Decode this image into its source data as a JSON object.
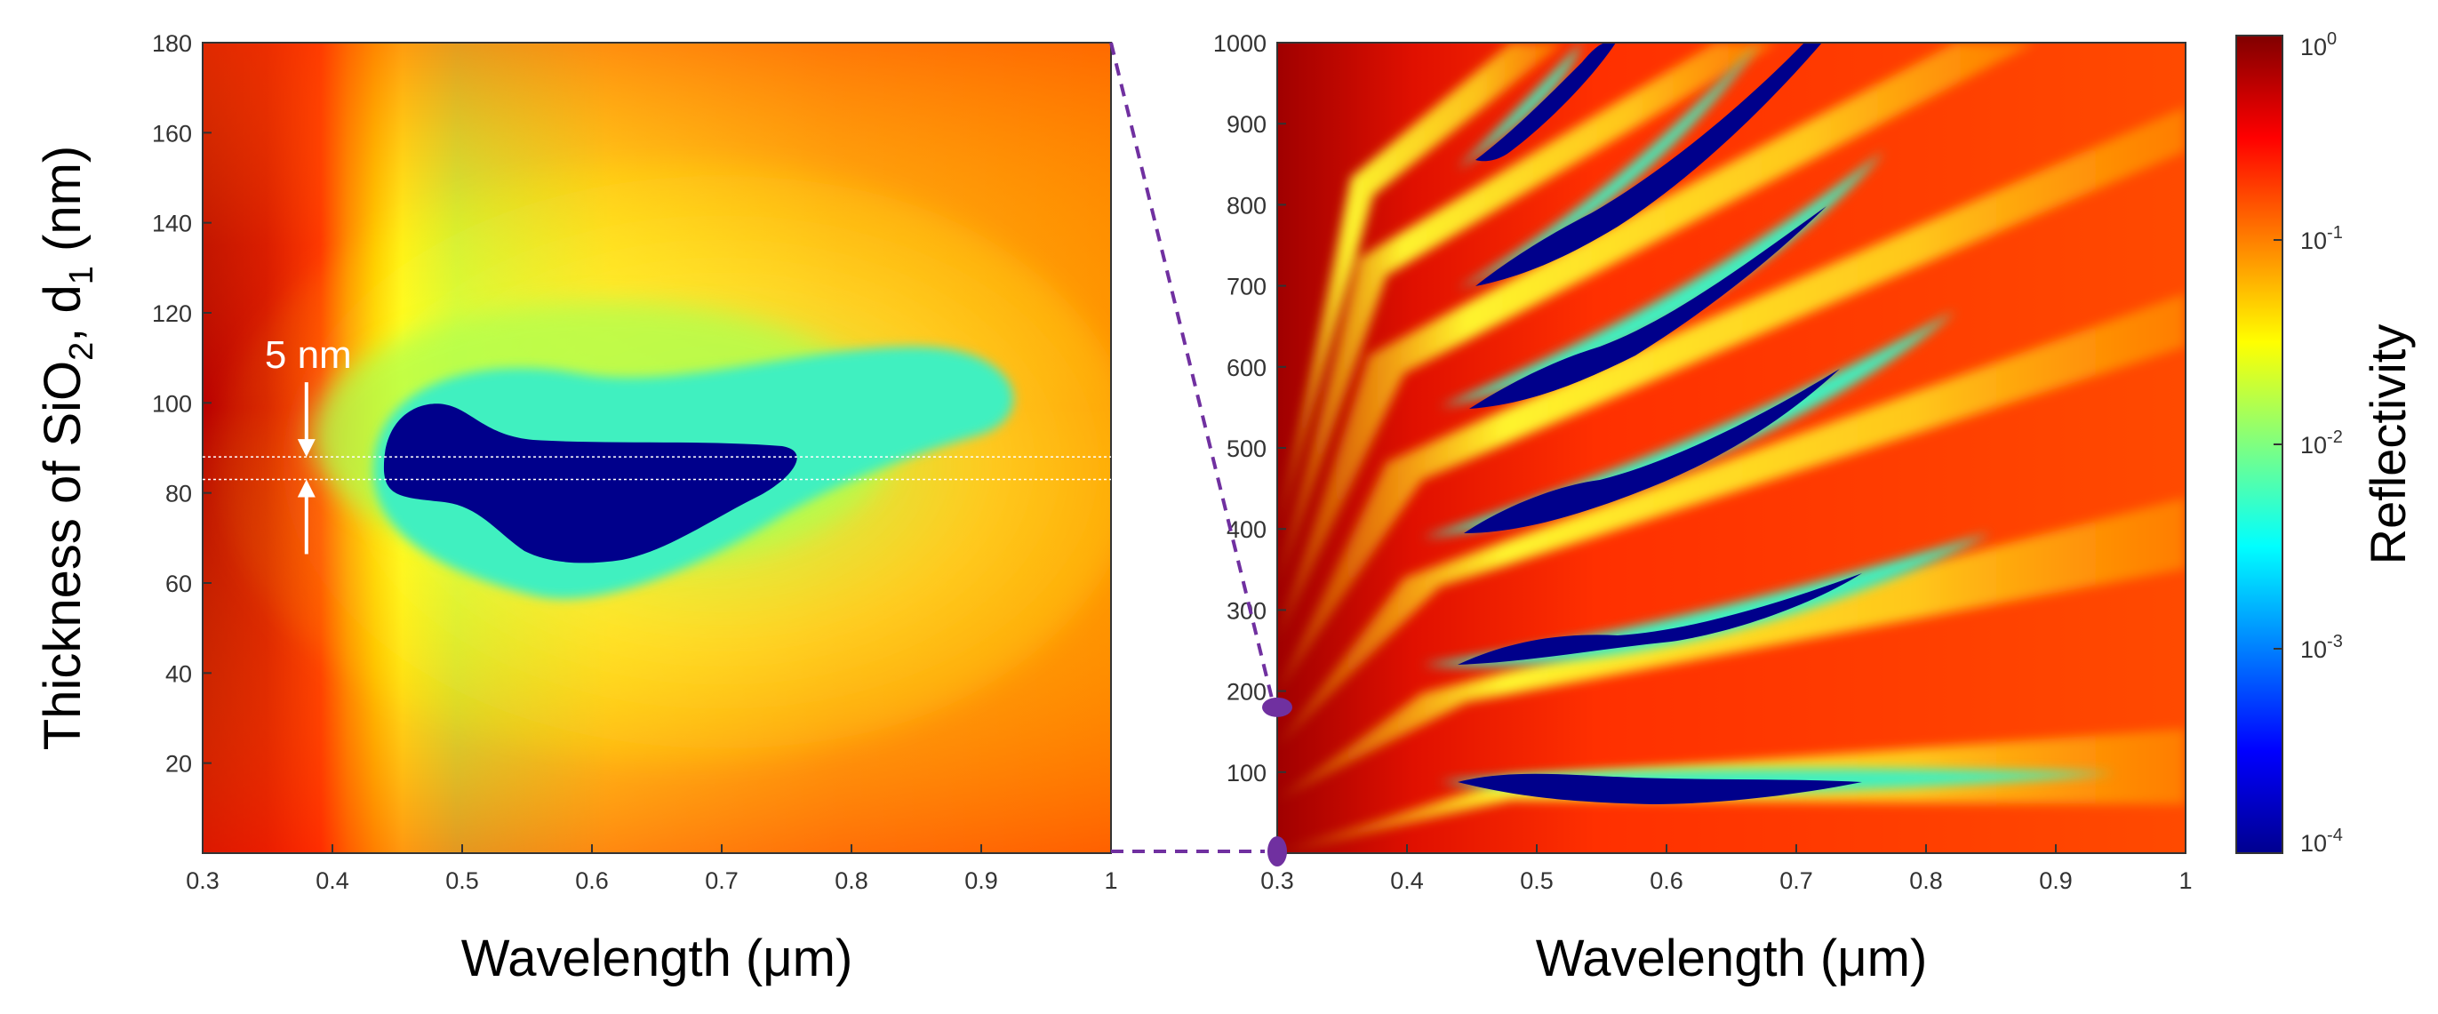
{
  "chart_data": [
    {
      "type": "heatmap",
      "panel": "left",
      "title": "",
      "xlabel": "Wavelength (μm)",
      "ylabel": "Thickness of SiO",
      "ylabel_sub": "2",
      "ylabel_tail": ", d",
      "ylabel_sub2": "1",
      "ylabel_end": " (nm)",
      "xlim": [
        0.3,
        1.0
      ],
      "ylim": [
        0,
        180
      ],
      "x_ticks": [
        "0.3",
        "0.4",
        "0.5",
        "0.6",
        "0.7",
        "0.8",
        "0.9",
        "1"
      ],
      "x_tick_values": [
        0.3,
        0.4,
        0.5,
        0.6,
        0.7,
        0.8,
        0.9,
        1.0
      ],
      "y_ticks": [
        "20",
        "40",
        "60",
        "80",
        "100",
        "120",
        "140",
        "160",
        "180"
      ],
      "y_tick_values": [
        20,
        40,
        60,
        80,
        100,
        120,
        140,
        160,
        180
      ],
      "annotation": {
        "text": "5 nm",
        "x": 0.38,
        "y_lower": 83,
        "y_upper": 88
      },
      "minimum_region": {
        "description": "reflectivity < 1e-3",
        "x_range": [
          0.44,
          0.75
        ],
        "y_range": [
          64,
          101
        ]
      }
    },
    {
      "type": "heatmap",
      "panel": "right",
      "title": "",
      "xlabel": "Wavelength (μm)",
      "ylabel": "",
      "xlim": [
        0.3,
        1.0
      ],
      "ylim": [
        0,
        1000
      ],
      "x_ticks": [
        "0.3",
        "0.4",
        "0.5",
        "0.6",
        "0.7",
        "0.8",
        "0.9",
        "1"
      ],
      "x_tick_values": [
        0.3,
        0.4,
        0.5,
        0.6,
        0.7,
        0.8,
        0.9,
        1.0
      ],
      "y_ticks": [
        "100",
        "200",
        "300",
        "400",
        "500",
        "600",
        "700",
        "800",
        "900",
        "1000"
      ],
      "y_tick_values": [
        100,
        200,
        300,
        400,
        500,
        600,
        700,
        800,
        900,
        1000
      ],
      "zoom_range_marker": {
        "x": 0.3,
        "y_range": [
          0,
          180
        ]
      },
      "minimum_bands": [
        {
          "order": 1,
          "x_range": [
            0.47,
            0.75
          ],
          "y_center": 85
        },
        {
          "order": 2,
          "x_range": [
            0.44,
            0.75
          ],
          "y_center": 290
        },
        {
          "order": 3,
          "x_range": [
            0.44,
            0.73
          ],
          "y_center": 490
        },
        {
          "order": 4,
          "x_range": [
            0.45,
            0.73
          ],
          "y_center": 670
        },
        {
          "order": 5,
          "x_range": [
            0.45,
            0.72
          ],
          "y_center": 850
        },
        {
          "order": 6,
          "x_range": [
            0.45,
            0.54
          ],
          "y_center": 950
        }
      ]
    }
  ],
  "colorbar": {
    "label": "Reflectivity",
    "scale": "log",
    "range": [
      0.0001,
      1
    ],
    "ticks": [
      {
        "base": "10",
        "exp": "0",
        "value": 1
      },
      {
        "base": "10",
        "exp": "-1",
        "value": 0.1
      },
      {
        "base": "10",
        "exp": "-2",
        "value": 0.01
      },
      {
        "base": "10",
        "exp": "-3",
        "value": 0.001
      },
      {
        "base": "10",
        "exp": "-4",
        "value": 0.0001
      }
    ],
    "colormap": [
      "#00008f",
      "#0000ff",
      "#00ffff",
      "#ffff00",
      "#ff0000",
      "#800000"
    ]
  },
  "colors": {
    "connector": "#7030a0",
    "annotation": "#ffffff",
    "deep_minimum": "#00008b",
    "teal": "#40f0c0",
    "green": "#a0ff50",
    "yellow": "#ffff20",
    "orange": "#ff9a10",
    "red": "#ff2a00",
    "dark_red": "#9a0000"
  }
}
